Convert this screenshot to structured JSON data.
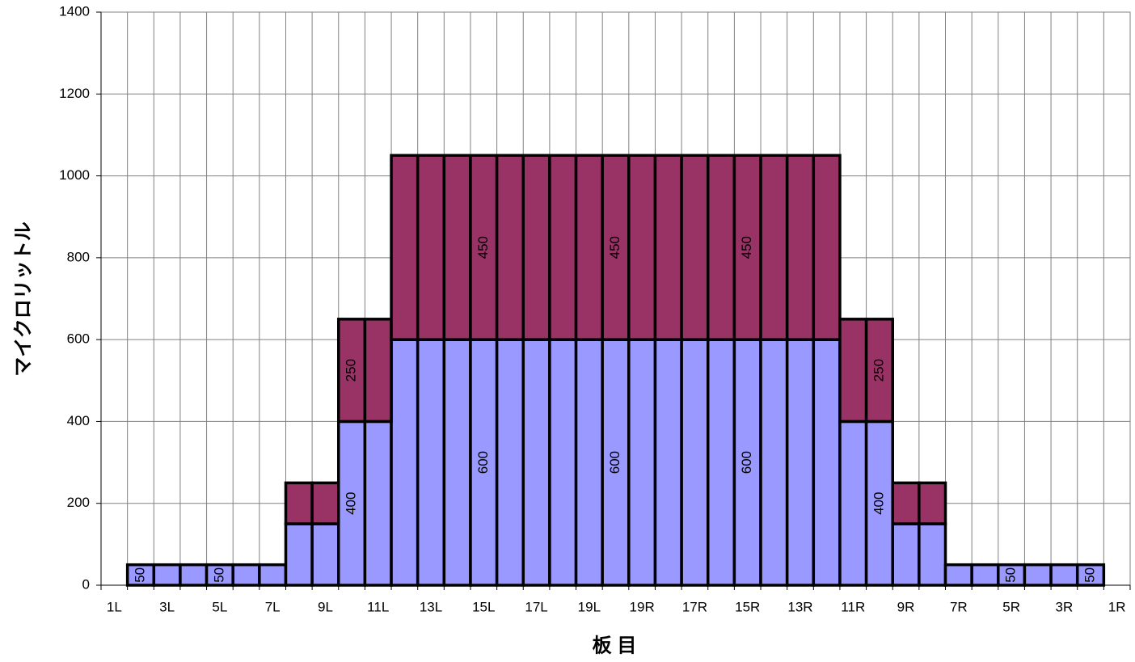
{
  "chart_data": {
    "type": "stacked_bar",
    "xlabel": "板 目",
    "ylabel": "マイクロリットル",
    "categories": [
      "1L",
      null,
      "3L",
      null,
      "5L",
      null,
      "7L",
      null,
      "9L",
      null,
      "11L",
      null,
      "13L",
      null,
      "15L",
      null,
      "17L",
      null,
      "19L",
      null,
      "19R",
      null,
      "17R",
      null,
      "15R",
      null,
      "13R",
      null,
      "11R",
      null,
      "9R",
      null,
      "7R",
      null,
      "5R",
      null,
      "3R",
      null,
      "1R"
    ],
    "series": [
      {
        "color": "#9999ff",
        "values": [
          null,
          50,
          50,
          50,
          50,
          50,
          50,
          150,
          150,
          400,
          400,
          600,
          600,
          600,
          600,
          600,
          600,
          600,
          600,
          600,
          600,
          600,
          600,
          600,
          600,
          600,
          600,
          600,
          400,
          400,
          150,
          150,
          50,
          50,
          50,
          50,
          50,
          50,
          null
        ],
        "value_labels": [
          null,
          "50",
          null,
          null,
          "50",
          null,
          null,
          null,
          null,
          "400",
          null,
          null,
          null,
          null,
          "600",
          null,
          null,
          null,
          null,
          "600",
          null,
          null,
          null,
          null,
          "600",
          null,
          null,
          null,
          null,
          "400",
          null,
          null,
          null,
          null,
          "50",
          null,
          null,
          "50",
          null
        ]
      },
      {
        "color": "#993366",
        "values": [
          null,
          null,
          null,
          null,
          null,
          null,
          null,
          100,
          100,
          250,
          250,
          450,
          450,
          450,
          450,
          450,
          450,
          450,
          450,
          450,
          450,
          450,
          450,
          450,
          450,
          450,
          450,
          450,
          250,
          250,
          100,
          100,
          null,
          null,
          null,
          null,
          null,
          null,
          null
        ],
        "value_labels": [
          null,
          null,
          null,
          null,
          null,
          null,
          null,
          null,
          null,
          "250",
          null,
          null,
          null,
          null,
          "450",
          null,
          null,
          null,
          null,
          "450",
          null,
          null,
          null,
          null,
          "450",
          null,
          null,
          null,
          null,
          "250",
          null,
          null,
          null,
          null,
          null,
          null,
          null,
          null,
          null
        ]
      }
    ],
    "ylim": [
      0,
      1400
    ],
    "yticks": [
      0,
      200,
      400,
      600,
      800,
      1000,
      1200,
      1400
    ],
    "grid": true
  }
}
